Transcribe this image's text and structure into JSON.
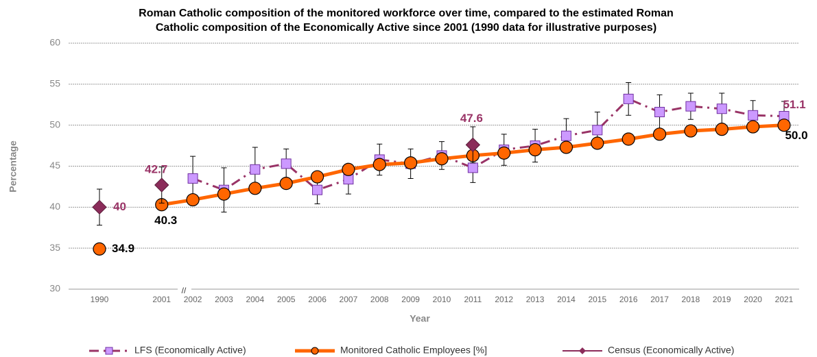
{
  "chart_data": {
    "type": "line",
    "title": [
      "Roman Catholic composition of the monitored workforce over time, compared to the estimated Roman",
      "Catholic composition of the Economically Active since 2001 (1990 data for illustrative purposes)"
    ],
    "x_label": "Year",
    "y_label": "Percentage",
    "axis_break": "//",
    "categories": [
      "1990",
      null,
      "2001",
      "2002",
      "2003",
      "2004",
      "2005",
      "2006",
      "2007",
      "2008",
      "2009",
      "2010",
      "2011",
      "2012",
      "2013",
      "2014",
      "2015",
      "2016",
      "2017",
      "2018",
      "2019",
      "2020",
      "2021"
    ],
    "ylim": [
      30,
      60
    ],
    "yticks": [
      30,
      35,
      40,
      45,
      50,
      55,
      60
    ],
    "grid": true,
    "legend": "bottom",
    "series": [
      {
        "name": "LFS (Economically Active)",
        "color": "#993366",
        "marker_color": "#cc99ff",
        "marker": "square",
        "line": "dashdot",
        "label_color": "#993366",
        "values": [
          null,
          null,
          null,
          43.5,
          42.1,
          44.6,
          45.3,
          42.1,
          43.4,
          45.8,
          45.3,
          46.3,
          44.8,
          47.0,
          47.5,
          48.7,
          49.4,
          53.2,
          51.6,
          52.3,
          52.0,
          51.2,
          51.1
        ],
        "errors": [
          null,
          null,
          null,
          2.7,
          2.7,
          2.7,
          1.8,
          1.7,
          1.8,
          1.9,
          1.8,
          1.7,
          1.8,
          1.9,
          2.0,
          2.1,
          2.2,
          2.0,
          2.1,
          1.6,
          1.9,
          1.8,
          1.8
        ],
        "value_labels": [
          null,
          null,
          null,
          null,
          null,
          null,
          null,
          null,
          null,
          null,
          null,
          null,
          null,
          null,
          null,
          null,
          null,
          null,
          null,
          null,
          null,
          null,
          "51.1"
        ]
      },
      {
        "name": "Monitored Catholic Employees [%]",
        "color": "#ff6600",
        "marker_color": "#ff6600",
        "marker": "circle",
        "line": "solid",
        "label_color": "#000000",
        "values": [
          34.9,
          null,
          40.3,
          40.9,
          41.6,
          42.3,
          42.9,
          43.7,
          44.6,
          45.2,
          45.4,
          45.9,
          46.3,
          46.6,
          47.0,
          47.3,
          47.8,
          48.3,
          48.9,
          49.3,
          49.5,
          49.8,
          50.0
        ],
        "errors": [
          0.6,
          null,
          0.6,
          0.6,
          0.6,
          0.6,
          0.6,
          0.6,
          0.6,
          0.6,
          0.6,
          0.6,
          0.6,
          0.6,
          0.6,
          0.6,
          0.6,
          0.6,
          0.6,
          0.6,
          0.6,
          0.6,
          0.6
        ],
        "value_labels": [
          "34.9",
          null,
          "40.3",
          null,
          null,
          null,
          null,
          null,
          null,
          null,
          null,
          null,
          null,
          null,
          null,
          null,
          null,
          null,
          null,
          null,
          null,
          null,
          "50.0"
        ]
      },
      {
        "name": "Census (Economically Active)",
        "color": "#8b2c5a",
        "marker_color": "#8b2c5a",
        "marker": "diamond",
        "line": "none",
        "label_color": "#993366",
        "values": [
          40,
          null,
          42.7,
          null,
          null,
          null,
          null,
          null,
          null,
          null,
          null,
          null,
          47.6,
          null,
          null,
          null,
          null,
          null,
          null,
          null,
          null,
          null,
          null
        ],
        "errors": [
          2.2,
          null,
          2.2,
          null,
          null,
          null,
          null,
          null,
          null,
          null,
          null,
          null,
          2.2,
          null,
          null,
          null,
          null,
          null,
          null,
          null,
          null,
          null,
          null
        ],
        "value_labels": [
          "40",
          null,
          "42.7",
          null,
          null,
          null,
          null,
          null,
          null,
          null,
          null,
          null,
          "47.6",
          null,
          null,
          null,
          null,
          null,
          null,
          null,
          null,
          null,
          null
        ]
      }
    ]
  }
}
